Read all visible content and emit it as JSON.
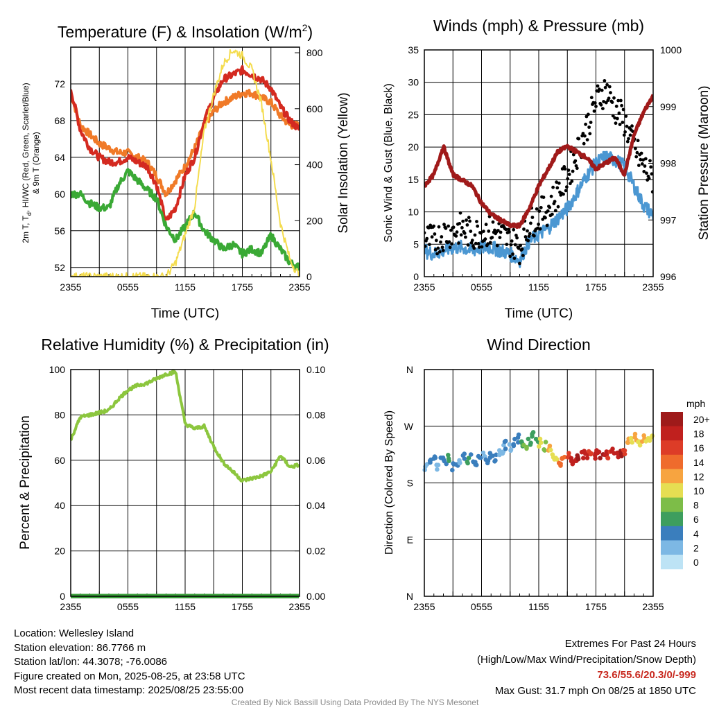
{
  "colors": {
    "temperature": "#d42a20",
    "dewpoint": "#3aa935",
    "heat_index": "#f07a28",
    "solar": "#f4dc4e",
    "wind": "#4b97d2",
    "gust": "#000000",
    "pressure": "#a01a1a",
    "rh": "#8cc63e",
    "precip": "#3a9f3a"
  },
  "time_ticks": [
    "2355",
    "0555",
    "1155",
    "1755",
    "2355"
  ],
  "chart_data": [
    {
      "type": "line",
      "title": "Temperature (F) & Insolation (W/m²)",
      "title_base": "Temperature (F) & Insolation (W/m",
      "title_sup": "2",
      "title_end": ")",
      "xlabel": "Time (UTC)",
      "ylabel_left": [
        "2m T, T",
        "d",
        ", HI/WC (Red, Green, Scarlet/Blue)",
        "& 9m T (Orange)"
      ],
      "ylabel_right": "Solar Insolation (Yellow)",
      "ylim_left": [
        51,
        76
      ],
      "ylim_right": [
        0,
        820
      ],
      "yticks_left": [
        52,
        56,
        60,
        64,
        68,
        72
      ],
      "yticks_right": [
        0,
        200,
        400,
        600,
        800
      ],
      "x_hours": [
        0,
        1,
        2,
        3,
        4,
        5,
        6,
        7,
        8,
        9,
        10,
        11,
        12,
        13,
        14,
        15,
        16,
        17,
        18,
        19,
        20,
        21,
        22,
        23,
        24
      ],
      "series": [
        {
          "key": "heat_index",
          "axis": "left",
          "values": [
            71.0,
            67.5,
            66.5,
            65.5,
            65.0,
            64.5,
            64.5,
            64.0,
            63.5,
            62.0,
            60.0,
            61.5,
            63.0,
            65.0,
            67.5,
            69.0,
            70.0,
            70.5,
            71.0,
            71.0,
            70.5,
            70.0,
            68.5,
            67.5,
            67.5
          ]
        },
        {
          "key": "temperature",
          "axis": "left",
          "values": [
            71.5,
            67.0,
            65.0,
            64.0,
            63.5,
            63.5,
            64.0,
            63.5,
            63.0,
            61.0,
            57.0,
            58.5,
            62.0,
            64.0,
            68.0,
            70.5,
            72.5,
            73.0,
            73.5,
            73.0,
            72.5,
            71.5,
            69.5,
            68.0,
            67.0
          ]
        },
        {
          "key": "dewpoint",
          "axis": "left",
          "values": [
            60.0,
            60.0,
            59.0,
            58.5,
            58.5,
            61.0,
            62.5,
            61.5,
            60.5,
            59.5,
            56.5,
            55.0,
            56.5,
            58.0,
            56.0,
            55.0,
            54.0,
            54.5,
            53.5,
            54.0,
            53.5,
            55.5,
            54.0,
            52.5,
            52.0
          ]
        },
        {
          "key": "solar",
          "axis": "right",
          "values": [
            0,
            0,
            0,
            0,
            0,
            0,
            0,
            0,
            0,
            0,
            0,
            50,
            150,
            250,
            520,
            650,
            760,
            810,
            790,
            740,
            620,
            420,
            190,
            60,
            0
          ]
        }
      ]
    },
    {
      "type": "line",
      "title": "Winds (mph) & Pressure (mb)",
      "xlabel": "Time (UTC)",
      "ylabel_left": "Sonic Wind & Gust (Blue, Black)",
      "ylabel_right": "Station Pressure (Maroon)",
      "ylim_left": [
        0,
        35
      ],
      "ylim_right": [
        996,
        1000
      ],
      "yticks_left": [
        0,
        5,
        10,
        15,
        20,
        25,
        30,
        35
      ],
      "yticks_right": [
        996,
        997,
        998,
        999,
        1000
      ],
      "x_hours": [
        0,
        1,
        2,
        3,
        4,
        5,
        6,
        7,
        8,
        9,
        10,
        11,
        12,
        13,
        14,
        15,
        16,
        17,
        18,
        19,
        20,
        21,
        22,
        23,
        24
      ],
      "series": [
        {
          "key": "wind",
          "axis": "left",
          "values": [
            4,
            3.5,
            4,
            4.5,
            4.5,
            4,
            4.5,
            4.5,
            4,
            3.5,
            2.5,
            5.5,
            6.5,
            7.5,
            9,
            10.5,
            13,
            15.5,
            17.5,
            18.5,
            18,
            17,
            14,
            11,
            9.5
          ]
        },
        {
          "key": "gust",
          "axis": "left",
          "marker": "dot",
          "values": [
            6,
            5.5,
            6.5,
            7,
            7.5,
            6.5,
            7,
            7,
            6.5,
            5.5,
            4.5,
            8,
            9.5,
            10.5,
            13,
            15.5,
            19,
            23,
            27,
            29,
            26,
            24,
            20,
            17,
            15
          ]
        },
        {
          "key": "pressure",
          "axis": "right",
          "values": [
            997.6,
            997.8,
            998.3,
            997.8,
            997.7,
            997.6,
            997.3,
            997.1,
            997.0,
            996.9,
            996.9,
            997.2,
            997.6,
            997.9,
            998.2,
            998.3,
            998.2,
            998.1,
            997.9,
            998.0,
            998.1,
            997.8,
            998.5,
            998.9,
            999.2
          ]
        }
      ]
    },
    {
      "type": "line",
      "title": "Relative Humidity (%) & Precipitation (in)",
      "ylabel_left": "Percent & Precipitation",
      "ylim_left": [
        0,
        100
      ],
      "ylim_right": [
        0,
        0.1
      ],
      "yticks_left": [
        0,
        20,
        40,
        60,
        80,
        100
      ],
      "yticks_right": [
        "0.00",
        "0.02",
        "0.04",
        "0.06",
        "0.08",
        "0.10"
      ],
      "x_hours": [
        0,
        1,
        2,
        3,
        4,
        5,
        6,
        7,
        8,
        9,
        10,
        11,
        12,
        13,
        14,
        15,
        16,
        17,
        18,
        19,
        20,
        21,
        22,
        23,
        24
      ],
      "series": [
        {
          "key": "rh",
          "axis": "left",
          "values": [
            69,
            79,
            80,
            81,
            82,
            87,
            91,
            93,
            94,
            96,
            98,
            99,
            76,
            74,
            75,
            66,
            59,
            55,
            51,
            52,
            53,
            55,
            62,
            57,
            58
          ]
        },
        {
          "key": "precip",
          "axis": "right",
          "values": [
            0,
            0,
            0,
            0,
            0,
            0,
            0,
            0,
            0,
            0,
            0,
            0,
            0,
            0,
            0,
            0,
            0,
            0,
            0,
            0,
            0,
            0,
            0,
            0,
            0
          ]
        }
      ]
    },
    {
      "type": "scatter",
      "title": "Wind Direction",
      "ylabel_left": "Direction (Colored By Speed)",
      "yticks_left": [
        "N",
        "E",
        "S",
        "W",
        "N"
      ],
      "ylim_left": [
        0,
        360
      ],
      "x_hours": [
        0.2,
        0.6,
        1.0,
        1.4,
        1.8,
        2.2,
        2.6,
        3.0,
        3.4,
        3.8,
        4.2,
        4.6,
        5.0,
        5.4,
        5.8,
        6.2,
        6.6,
        7.0,
        7.4,
        7.8,
        8.2,
        8.6,
        9.0,
        9.4,
        9.8,
        10.2,
        10.6,
        11.0,
        11.4,
        11.8,
        12.2,
        12.6,
        13.0,
        13.4,
        13.8,
        14.2,
        14.6,
        15.0,
        15.4,
        15.8,
        16.2,
        16.6,
        17.0,
        17.4,
        17.8,
        18.2,
        18.6,
        19.0,
        19.4,
        19.8,
        20.2,
        20.6,
        21.0,
        21.4,
        21.8,
        22.2,
        22.6,
        23.0,
        23.4,
        23.8
      ],
      "directions": [
        205,
        212,
        218,
        208,
        215,
        210,
        220,
        206,
        214,
        209,
        222,
        216,
        219,
        211,
        224,
        228,
        218,
        225,
        221,
        230,
        233,
        240,
        238,
        245,
        250,
        242,
        236,
        246,
        255,
        250,
        244,
        238,
        232,
        226,
        220,
        212,
        216,
        222,
        214,
        219,
        222,
        224,
        226,
        228,
        225,
        227,
        224,
        229,
        226,
        228,
        225,
        227,
        230,
        249,
        248,
        252,
        246,
        250,
        248,
        250
      ],
      "speeds": [
        2,
        3,
        4,
        2,
        4,
        3,
        5,
        3,
        4,
        2,
        4,
        5,
        3,
        4,
        4,
        2,
        4,
        3,
        4,
        2,
        2,
        3,
        1,
        4,
        3,
        6,
        7,
        6,
        6,
        5,
        9,
        8,
        11,
        10,
        9,
        14,
        13,
        16,
        17,
        18,
        19,
        18,
        17,
        16,
        18,
        17,
        19,
        18,
        16,
        17,
        18,
        19,
        16,
        12,
        10,
        12,
        9,
        11,
        10,
        9
      ],
      "colorbar": {
        "unit": "mph",
        "labels": [
          "20+",
          "18",
          "16",
          "14",
          "12",
          "10",
          "8",
          "6",
          "4",
          "2",
          "0"
        ],
        "colors": [
          "#9e1a1a",
          "#c0201e",
          "#dd3c27",
          "#ef6b2c",
          "#f7a440",
          "#e6de52",
          "#7dbd48",
          "#3d9e5e",
          "#3a7ebd",
          "#7db8e4",
          "#bde3f5"
        ]
      }
    }
  ],
  "footer": {
    "location": "Location: Wellesley Island",
    "elevation": "Station elevation: 86.7766 m",
    "latlon": "Station lat/lon: 44.3078; -76.0086",
    "created": "Figure created on Mon, 2025-08-25, at 23:58 UTC",
    "recent": "Most recent data timestamp: 2025/08/25 23:55:00",
    "extremes_title": "Extremes For Past 24 Hours",
    "extremes_subtitle": "(High/Low/Max Wind/Precipitation/Snow Depth)",
    "extremes_values": "73.6/55.6/20.3/0/-999",
    "max_gust": "Max Gust: 31.7 mph On 08/25 at 1850 UTC",
    "credit": "Created By Nick Bassill Using Data Provided By The NYS Mesonet"
  }
}
